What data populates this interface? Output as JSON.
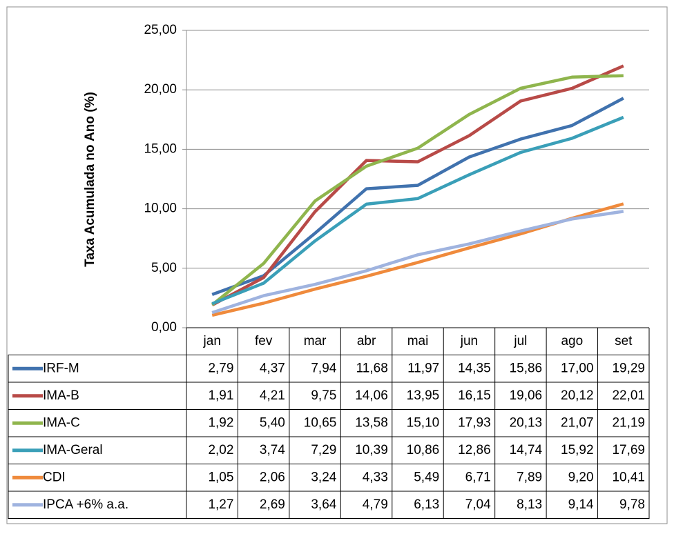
{
  "chart_data": {
    "type": "line",
    "y_label": "Taxa Acumulada no Ano (%)",
    "categories": [
      "jan",
      "fev",
      "mar",
      "abr",
      "mai",
      "jun",
      "jul",
      "ago",
      "set"
    ],
    "ylim": [
      0,
      25
    ],
    "yticks": [
      {
        "value": 0,
        "label": "0,00"
      },
      {
        "value": 5,
        "label": "5,00"
      },
      {
        "value": 10,
        "label": "10,00"
      },
      {
        "value": 15,
        "label": "15,00"
      },
      {
        "value": 20,
        "label": "20,00"
      },
      {
        "value": 25,
        "label": "25,00"
      }
    ],
    "grid": true,
    "series": [
      {
        "name": "IRF-M",
        "color": "#4072ae",
        "values": [
          2.79,
          4.37,
          7.94,
          11.68,
          11.97,
          14.35,
          15.86,
          17.0,
          19.29
        ],
        "value_labels": [
          "2,79",
          "4,37",
          "7,94",
          "11,68",
          "11,97",
          "14,35",
          "15,86",
          "17,00",
          "19,29"
        ]
      },
      {
        "name": "IMA-B",
        "color": "#b84a47",
        "values": [
          1.91,
          4.21,
          9.75,
          14.06,
          13.95,
          16.15,
          19.06,
          20.12,
          22.01
        ],
        "value_labels": [
          "1,91",
          "4,21",
          "9,75",
          "14,06",
          "13,95",
          "16,15",
          "19,06",
          "20,12",
          "22,01"
        ]
      },
      {
        "name": "IMA-C",
        "color": "#8fb54d",
        "values": [
          1.92,
          5.4,
          10.65,
          13.58,
          15.1,
          17.93,
          20.13,
          21.07,
          21.19
        ],
        "value_labels": [
          "1,92",
          "5,40",
          "10,65",
          "13,58",
          "15,10",
          "17,93",
          "20,13",
          "21,07",
          "21,19"
        ]
      },
      {
        "name": "IMA-Geral",
        "color": "#3a9fb8",
        "values": [
          2.02,
          3.74,
          7.29,
          10.39,
          10.86,
          12.86,
          14.74,
          15.92,
          17.69
        ],
        "value_labels": [
          "2,02",
          "3,74",
          "7,29",
          "10,39",
          "10,86",
          "12,86",
          "14,74",
          "15,92",
          "17,69"
        ]
      },
      {
        "name": "CDI",
        "color": "#ef8a3c",
        "values": [
          1.05,
          2.06,
          3.24,
          4.33,
          5.49,
          6.71,
          7.89,
          9.2,
          10.41
        ],
        "value_labels": [
          "1,05",
          "2,06",
          "3,24",
          "4,33",
          "5,49",
          "6,71",
          "7,89",
          "9,20",
          "10,41"
        ]
      },
      {
        "name": "IPCA +6% a.a.",
        "color": "#9fb3df",
        "values": [
          1.27,
          2.69,
          3.64,
          4.79,
          6.13,
          7.04,
          8.13,
          9.14,
          9.78
        ],
        "value_labels": [
          "1,27",
          "2,69",
          "3,64",
          "4,79",
          "6,13",
          "7,04",
          "8,13",
          "9,14",
          "9,78"
        ]
      }
    ]
  }
}
